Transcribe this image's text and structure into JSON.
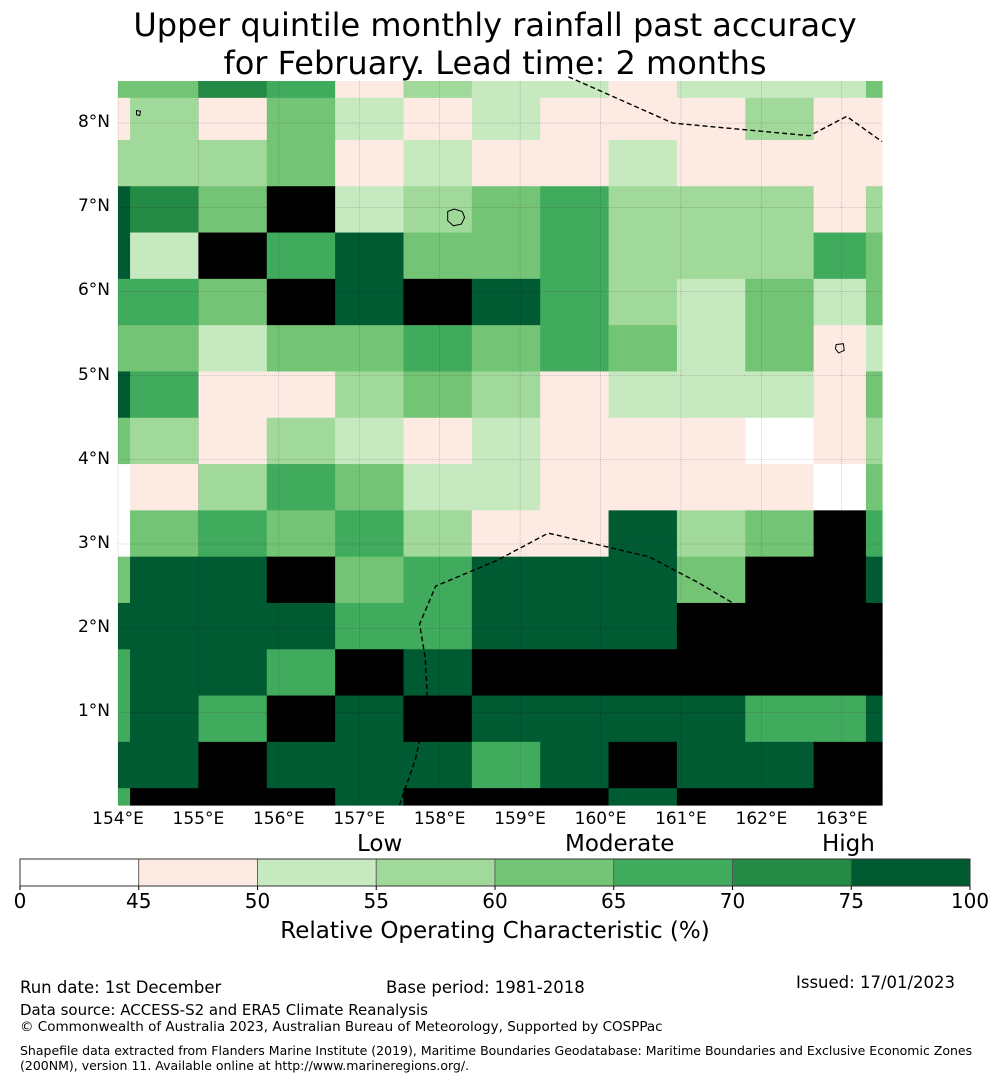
{
  "title_line1": "Upper quintile monthly rainfall past accuracy",
  "title_line2": "for February. Lead time: 2 months",
  "map": {
    "lon_range": [
      154,
      163.5
    ],
    "lat_range": [
      -0.1,
      8.5
    ],
    "lat_ticks": [
      "8°N",
      "7°N",
      "6°N",
      "5°N",
      "4°N",
      "3°N",
      "2°N",
      "1°N"
    ],
    "lat_tick_values": [
      8,
      7,
      6,
      5,
      4,
      3,
      2,
      1
    ],
    "lon_ticks": [
      "154°E",
      "155°E",
      "156°E",
      "157°E",
      "158°E",
      "159°E",
      "160°E",
      "161°E",
      "162°E",
      "163°E"
    ],
    "lon_tick_values": [
      154,
      155,
      156,
      157,
      158,
      159,
      160,
      161,
      162,
      163
    ],
    "row_lat_edges": [
      8.5,
      8.3,
      7.8,
      7.25,
      6.7,
      6.15,
      5.6,
      5.05,
      4.5,
      3.95,
      3.4,
      2.85,
      2.3,
      1.75,
      1.2,
      0.65,
      0.1,
      -0.1
    ],
    "col_lon_edges": [
      154,
      154.15,
      155,
      155.85,
      156.7,
      157.55,
      158.4,
      159.25,
      160.1,
      160.95,
      161.8,
      162.65,
      163.3,
      163.5
    ],
    "rows": [
      [
        3,
        3,
        5,
        4,
        0,
        2,
        1,
        1,
        0,
        1,
        1,
        1,
        3
      ],
      [
        0,
        2,
        0,
        3,
        1,
        0,
        1,
        0,
        0,
        0,
        2,
        0,
        0
      ],
      [
        2,
        2,
        2,
        3,
        0,
        1,
        0,
        0,
        1,
        0,
        0,
        0,
        0
      ],
      [
        6,
        5,
        3,
        7,
        1,
        2,
        3,
        4,
        2,
        2,
        2,
        0,
        2
      ],
      [
        6,
        1,
        7,
        4,
        6,
        3,
        3,
        4,
        2,
        2,
        2,
        4,
        3
      ],
      [
        4,
        4,
        3,
        7,
        6,
        7,
        6,
        4,
        2,
        1,
        3,
        1,
        3
      ],
      [
        3,
        3,
        1,
        3,
        3,
        4,
        3,
        4,
        3,
        1,
        3,
        0,
        1
      ],
      [
        6,
        4,
        0,
        0,
        2,
        3,
        2,
        0,
        1,
        1,
        1,
        0,
        3
      ],
      [
        3,
        2,
        0,
        2,
        1,
        0,
        1,
        0,
        0,
        0,
        -1,
        0,
        2
      ],
      [
        -1,
        0,
        2,
        4,
        3,
        1,
        1,
        0,
        0,
        0,
        0,
        -1,
        3
      ],
      [
        -1,
        3,
        4,
        3,
        4,
        2,
        0,
        0,
        6,
        2,
        3,
        7,
        4
      ],
      [
        3,
        6,
        6,
        7,
        3,
        4,
        6,
        6,
        6,
        3,
        7,
        7,
        6
      ],
      [
        6,
        6,
        6,
        6,
        4,
        4,
        6,
        6,
        6,
        7,
        7,
        7,
        7
      ],
      [
        4,
        6,
        6,
        4,
        7,
        6,
        7,
        7,
        7,
        7,
        7,
        7,
        7
      ],
      [
        4,
        6,
        4,
        7,
        6,
        7,
        6,
        6,
        6,
        6,
        4,
        4,
        6
      ],
      [
        6,
        6,
        7,
        6,
        6,
        6,
        4,
        6,
        7,
        6,
        6,
        7,
        7
      ],
      [
        4,
        7,
        7,
        7,
        6,
        7,
        7,
        7,
        6,
        7,
        7,
        7,
        7
      ]
    ],
    "category_colors": [
      "#fdeae2",
      "#c7e9c0",
      "#a1d99b",
      "#74c476",
      "#41ab5d",
      "#238b45",
      "#005a32"
    ],
    "nodata_color": "#ffffff",
    "boundaries": [
      [
        [
          159.6,
          8.55
        ],
        [
          160.9,
          8.0
        ],
        [
          162.6,
          7.85
        ],
        [
          163.06,
          8.08
        ],
        [
          163.5,
          7.78
        ]
      ],
      [
        [
          157.5,
          -0.1
        ],
        [
          157.7,
          0.45
        ],
        [
          157.85,
          1.1
        ],
        [
          157.82,
          1.65
        ],
        [
          157.75,
          2.05
        ],
        [
          157.95,
          2.5
        ],
        [
          158.7,
          2.8
        ],
        [
          159.35,
          3.13
        ],
        [
          160.6,
          2.85
        ],
        [
          161.2,
          2.55
        ],
        [
          162.0,
          2.1
        ],
        [
          162.8,
          1.92
        ],
        [
          163.5,
          2.0
        ]
      ]
    ],
    "islands": [
      [
        [
          158.1,
          6.95
        ],
        [
          158.18,
          6.98
        ],
        [
          158.28,
          6.95
        ],
        [
          158.31,
          6.88
        ],
        [
          158.27,
          6.8
        ],
        [
          158.17,
          6.78
        ],
        [
          158.1,
          6.84
        ],
        [
          158.1,
          6.95
        ]
      ],
      [
        [
          162.93,
          5.37
        ],
        [
          163.02,
          5.38
        ],
        [
          163.03,
          5.3
        ],
        [
          162.96,
          5.27
        ],
        [
          162.92,
          5.32
        ],
        [
          162.93,
          5.37
        ]
      ],
      [
        [
          154.23,
          8.15
        ],
        [
          154.28,
          8.14
        ],
        [
          154.27,
          8.09
        ],
        [
          154.23,
          8.1
        ],
        [
          154.23,
          8.15
        ]
      ]
    ]
  },
  "colorbar": {
    "category_labels": [
      "Low",
      "Moderate",
      "High"
    ],
    "boundaries": [
      0,
      45,
      50,
      55,
      60,
      65,
      70,
      75,
      100
    ],
    "tick_labels": [
      "0",
      "45",
      "50",
      "55",
      "60",
      "65",
      "70",
      "75",
      "100"
    ],
    "colors": [
      "#ffffff",
      "#fdeae2",
      "#c7e9c0",
      "#a1d99b",
      "#74c476",
      "#41ab5d",
      "#238b45",
      "#005a32"
    ],
    "label": "Relative Operating Characteristic (%)"
  },
  "footer": {
    "run_date": "Run date: 1st December",
    "base_period": "Base period: 1981-2018",
    "issued": "Issued: 17/01/2023",
    "data_source": "Data source: ACCESS-S2 and ERA5 Climate Reanalysis",
    "copyright": "© Commonwealth of Australia 2023, Australian Bureau of Meteorology, Supported by COSPPac",
    "shapefile_line1": "Shapefile data extracted from Flanders Marine Institute (2019), Maritime Boundaries Geodatabase: Maritime Boundaries and Exclusive Economic Zones",
    "shapefile_line2": "(200NM), version 11. Available online at http://www.marineregions.org/."
  }
}
